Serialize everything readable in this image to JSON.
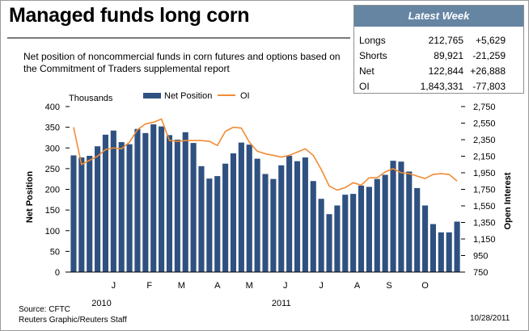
{
  "title": "Managed funds long corn",
  "subtitle": "Net position of noncommercial funds in corn futures and options based on the Commitment of Traders supplemental report",
  "latest_week": {
    "header": "Latest Week",
    "rows": [
      {
        "label": "Longs",
        "value": "212,765",
        "change": "+5,629"
      },
      {
        "label": "Shorts",
        "value": "89,921",
        "change": "-21,259"
      },
      {
        "label": "Net",
        "value": "122,844",
        "change": "+26,888"
      },
      {
        "label": "OI",
        "value": "1,843,331",
        "change": "-77,803"
      }
    ]
  },
  "source": "Source: CFTC",
  "credit": "Reuters Graphic/Reuters Staff",
  "date": "10/28/2011",
  "colors": {
    "bars": "#2f5180",
    "line": "#f08c35",
    "header": "#6685a3"
  },
  "chart_data": {
    "type": "bar",
    "units_label": "Thousands",
    "ylabel": "Net Position",
    "y2label": "Open Interest",
    "ylim": [
      0,
      400
    ],
    "y2lim": [
      750,
      2750
    ],
    "yticks": [
      0,
      50,
      100,
      150,
      200,
      250,
      300,
      350,
      400
    ],
    "y2ticks": [
      "750",
      "950",
      "1,150",
      "1,350",
      "1,550",
      "1,750",
      "1,950",
      "2,150",
      "2,350",
      "2,550",
      "2,750"
    ],
    "month_labels": [
      {
        "label": "J",
        "at": 5.5
      },
      {
        "label": "F",
        "at": 10
      },
      {
        "label": "M",
        "at": 14
      },
      {
        "label": "A",
        "at": 18.5
      },
      {
        "label": "M",
        "at": 22.5
      },
      {
        "label": "J",
        "at": 27
      },
      {
        "label": "J",
        "at": 31.5
      },
      {
        "label": "A",
        "at": 36
      },
      {
        "label": "S",
        "at": 40
      },
      {
        "label": "O",
        "at": 44.5
      }
    ],
    "year_labels": [
      {
        "label": "2010",
        "at": 4
      },
      {
        "label": "2011",
        "at": 26.5
      }
    ],
    "series": [
      {
        "name": "Net Position",
        "type": "bar",
        "axis": "left",
        "values": [
          282,
          277,
          281,
          304,
          332,
          342,
          314,
          309,
          346,
          336,
          357,
          352,
          331,
          320,
          338,
          312,
          256,
          226,
          232,
          262,
          287,
          313,
          308,
          274,
          237,
          225,
          258,
          281,
          268,
          277,
          220,
          177,
          140,
          161,
          187,
          189,
          209,
          206,
          225,
          235,
          269,
          267,
          243,
          203,
          161,
          116,
          96,
          96,
          122
        ]
      },
      {
        "name": "OI",
        "type": "line",
        "axis": "right",
        "values": [
          2500,
          2050,
          2100,
          2150,
          2230,
          2250,
          2240,
          2320,
          2470,
          2540,
          2560,
          2600,
          2340,
          2330,
          2340,
          2340,
          2340,
          2330,
          2280,
          2450,
          2500,
          2490,
          2320,
          2210,
          2180,
          2160,
          2140,
          2160,
          2200,
          2240,
          2160,
          1990,
          1790,
          1740,
          1770,
          1830,
          1800,
          1890,
          1890,
          1960,
          2000,
          1950,
          1940,
          1910,
          1880,
          1930,
          1940,
          1930,
          1850
        ]
      }
    ]
  }
}
